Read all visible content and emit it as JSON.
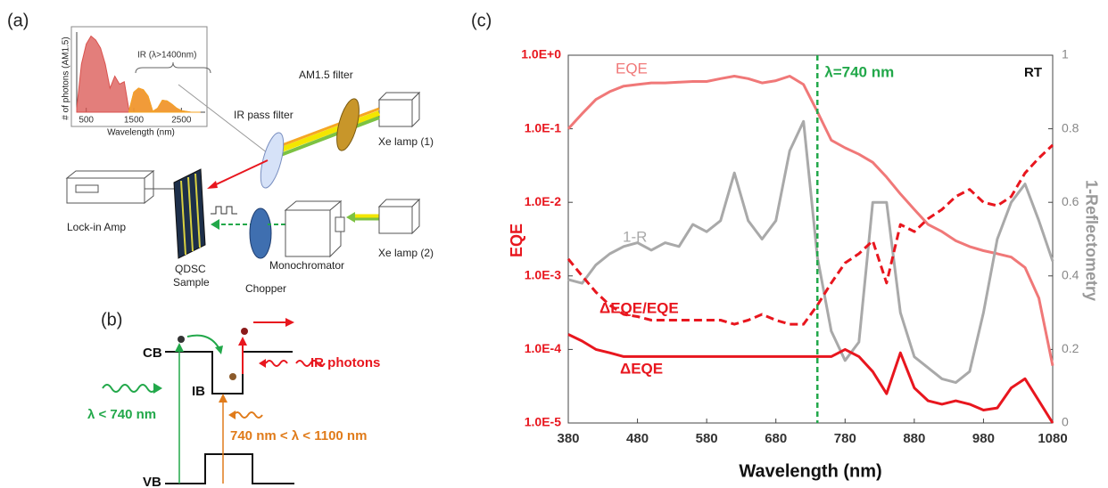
{
  "panels": {
    "a": {
      "label": "(a)",
      "ir_pass_filter": "IR pass filter",
      "am15_filter": "AM1.5 filter",
      "xe_lamp_1": "Xe lamp (1)",
      "xe_lamp_2": "Xe lamp (2)",
      "lock_in_amp": "Lock-in Amp",
      "sample_1": "QDSC",
      "sample_2": "Sample",
      "monochromator": "Monochromator",
      "chopper": "Chopper"
    },
    "b": {
      "label": "(b)",
      "cb": "CB",
      "ib": "IB",
      "vb": "VB",
      "ir_photons": "IR photons",
      "short_wave": "λ < 740 nm",
      "mid_wave": "740 nm < λ < 1100 nm"
    },
    "c": {
      "label": "(c)"
    }
  },
  "chart_data": [
    {
      "type": "area",
      "ylabel": "# of photons (AM1.5)",
      "xlabel": "Wavelength (nm)",
      "annotation": "IR (λ>1400nm)",
      "xlim": [
        300,
        3000
      ],
      "ylim": [
        0,
        1
      ],
      "xticks": [
        500,
        1500,
        2500
      ],
      "x": [
        300,
        400,
        500,
        600,
        700,
        800,
        900,
        1000,
        1100,
        1200,
        1300,
        1400,
        1500,
        1600,
        1700,
        1800,
        1900,
        2000,
        2100,
        2200,
        2300,
        2400,
        2500,
        2600,
        2700,
        2800,
        2900
      ],
      "series": [
        {
          "color": "#d9534f",
          "values": [
            0.05,
            0.6,
            0.85,
            0.95,
            0.9,
            0.8,
            0.6,
            0.3,
            0.45,
            0.35,
            0.38,
            0.02,
            0.25,
            0.3,
            0.28,
            0.2,
            0.01,
            0.05,
            0.15,
            0.14,
            0.1,
            0.05,
            0.02,
            0.01,
            0,
            0,
            0
          ]
        },
        {
          "color": "#f5a623",
          "values": [
            null,
            null,
            null,
            null,
            null,
            null,
            null,
            null,
            null,
            null,
            null,
            0.02,
            0.25,
            0.3,
            0.28,
            0.2,
            0.01,
            0.05,
            0.15,
            0.14,
            0.1,
            0.05,
            0.02,
            0.01,
            0,
            0,
            0
          ]
        }
      ]
    },
    {
      "type": "line",
      "xlabel": "Wavelength (nm)",
      "ylabel": "EQE",
      "y2label": "1-Reflectometry",
      "note": "RT",
      "ylog": true,
      "xlim": [
        380,
        1080
      ],
      "ylim": [
        1e-05,
        1
      ],
      "y2lim": [
        0,
        1
      ],
      "xticks": [
        380,
        480,
        580,
        680,
        780,
        880,
        980,
        1080
      ],
      "yticks": [
        {
          "value": 1e-05,
          "label": "1.0E-5"
        },
        {
          "value": 0.0001,
          "label": "1.0E-4"
        },
        {
          "value": 0.001,
          "label": "1.0E-3"
        },
        {
          "value": 0.01,
          "label": "1.0E-2"
        },
        {
          "value": 0.1,
          "label": "1.0E-1"
        },
        {
          "value": 1,
          "label": "1.0E+0"
        }
      ],
      "y2ticks": [
        0,
        0.2,
        0.4,
        0.6,
        0.8,
        1
      ],
      "vline": {
        "x": 740,
        "label": "λ=740 nm",
        "color": "#22a84a"
      },
      "x": [
        380,
        400,
        420,
        440,
        460,
        480,
        500,
        520,
        540,
        560,
        580,
        600,
        620,
        640,
        660,
        680,
        700,
        720,
        740,
        760,
        780,
        800,
        820,
        840,
        860,
        880,
        900,
        920,
        940,
        960,
        980,
        1000,
        1020,
        1040,
        1060,
        1080
      ],
      "series": [
        {
          "name": "EQE",
          "color": "#f07878",
          "values": [
            0.1,
            0.16,
            0.25,
            0.32,
            0.38,
            0.4,
            0.42,
            0.42,
            0.43,
            0.44,
            0.44,
            0.48,
            0.52,
            0.48,
            0.42,
            0.45,
            0.52,
            0.4,
            0.17,
            0.07,
            0.055,
            0.045,
            0.035,
            0.022,
            0.013,
            0.008,
            0.005,
            0.004,
            0.003,
            0.0025,
            0.0022,
            0.002,
            0.0018,
            0.0013,
            0.0005,
            6e-05
          ]
        },
        {
          "name": "1-R",
          "color": "#a9a9a9",
          "axis": "y2",
          "values": [
            0.39,
            0.38,
            0.43,
            0.46,
            0.48,
            0.49,
            0.47,
            0.49,
            0.48,
            0.54,
            0.52,
            0.55,
            0.68,
            0.55,
            0.5,
            0.55,
            0.74,
            0.82,
            0.45,
            0.25,
            0.17,
            0.22,
            0.6,
            0.6,
            0.3,
            0.18,
            0.15,
            0.12,
            0.11,
            0.14,
            0.3,
            0.5,
            0.6,
            0.65,
            0.55,
            0.44
          ]
        },
        {
          "name": "ΔEQE/EQE",
          "color": "#e8161e",
          "dashed": true,
          "values": [
            0.0017,
            0.001,
            0.0006,
            0.0004,
            0.0003,
            0.00028,
            0.00025,
            0.00025,
            0.00025,
            0.00025,
            0.00025,
            0.00025,
            0.00022,
            0.00025,
            0.0003,
            0.00025,
            0.00022,
            0.00022,
            0.0004,
            0.0008,
            0.0015,
            0.002,
            0.003,
            0.0008,
            0.005,
            0.004,
            0.006,
            0.008,
            0.012,
            0.015,
            0.01,
            0.009,
            0.012,
            0.025,
            0.04,
            0.06
          ]
        },
        {
          "name": "ΔEQE",
          "color": "#e8161e",
          "values": [
            0.00016,
            0.00013,
            0.0001,
            9e-05,
            8e-05,
            8e-05,
            8e-05,
            8e-05,
            8e-05,
            8e-05,
            8e-05,
            8e-05,
            8e-05,
            8e-05,
            8e-05,
            8e-05,
            8e-05,
            8e-05,
            8e-05,
            8e-05,
            0.0001,
            8e-05,
            5e-05,
            2.5e-05,
            9e-05,
            3e-05,
            2e-05,
            1.8e-05,
            2e-05,
            1.8e-05,
            1.5e-05,
            1.6e-05,
            3e-05,
            4e-05,
            2e-05,
            1e-05
          ]
        }
      ]
    }
  ]
}
